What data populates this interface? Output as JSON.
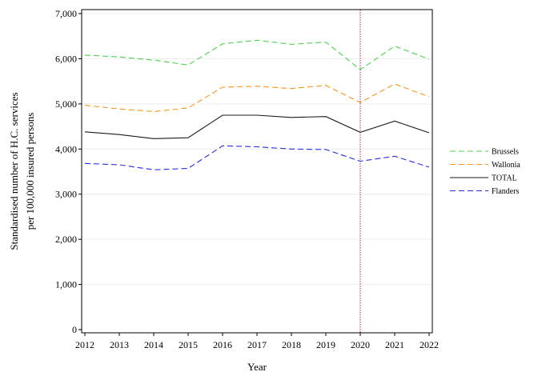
{
  "chart_data": {
    "type": "line",
    "title": "",
    "xlabel": "Year",
    "ylabel_lines": [
      "Standardised number of H.C. services",
      "per 100,000 insured persons"
    ],
    "x": [
      2012,
      2013,
      2014,
      2015,
      2016,
      2017,
      2018,
      2019,
      2020,
      2021,
      2022
    ],
    "xlim": [
      2012,
      2022
    ],
    "ylim": [
      0,
      7000
    ],
    "yticks": [
      0,
      1000,
      2000,
      3000,
      4000,
      5000,
      6000,
      7000
    ],
    "ytick_labels": [
      "0",
      "1,000",
      "2,000",
      "3,000",
      "4,000",
      "5,000",
      "6,000",
      "7,000"
    ],
    "xtick_labels": [
      "2012",
      "2013",
      "2014",
      "2015",
      "2016",
      "2017",
      "2018",
      "2019",
      "2020",
      "2021",
      "2022"
    ],
    "grid": "horizontal",
    "legend_position": "right",
    "reference_line": {
      "x": 2020,
      "color": "#c2185b",
      "style": "dotted"
    },
    "series": [
      {
        "name": "Brussels",
        "color": "#4cd24c",
        "style": "dashed",
        "values": [
          6080,
          6040,
          5970,
          5860,
          6330,
          6410,
          6320,
          6370,
          5760,
          6280,
          5990
        ]
      },
      {
        "name": "Wallonia",
        "color": "#f5961e",
        "style": "dashed",
        "values": [
          4970,
          4890,
          4830,
          4910,
          5370,
          5390,
          5340,
          5410,
          5030,
          5440,
          5160
        ]
      },
      {
        "name": "TOTAL",
        "color": "#1a1a1a",
        "style": "solid",
        "values": [
          4380,
          4320,
          4230,
          4250,
          4750,
          4750,
          4700,
          4720,
          4370,
          4620,
          4360
        ]
      },
      {
        "name": "Flanders",
        "color": "#2a2ae6",
        "style": "dashed",
        "values": [
          3680,
          3650,
          3540,
          3570,
          4070,
          4050,
          4000,
          3990,
          3730,
          3840,
          3600
        ]
      }
    ]
  }
}
